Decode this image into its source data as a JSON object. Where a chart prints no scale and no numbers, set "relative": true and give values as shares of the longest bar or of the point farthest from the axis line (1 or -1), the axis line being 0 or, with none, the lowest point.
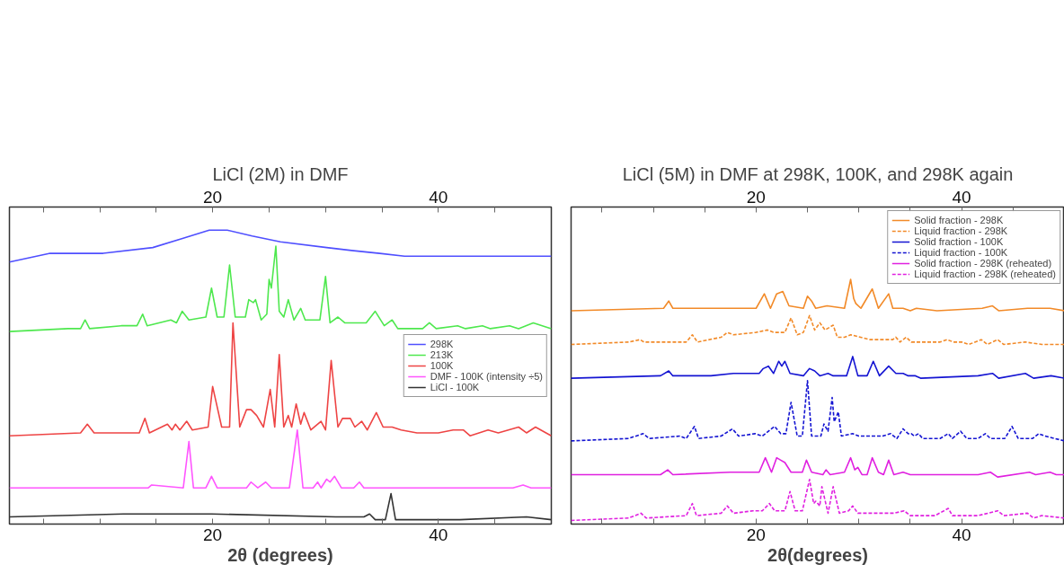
{
  "chart_data": [
    {
      "type": "line",
      "title": "LiCl (2M) in DMF",
      "xlabel": "2θ (degrees)",
      "relative": true,
      "legend": "right",
      "grid": false,
      "marker": "none",
      "xlim": [
        2,
        50
      ],
      "xticks": [
        {
          "value": 5,
          "label": null
        },
        {
          "value": 10,
          "label": null
        },
        {
          "value": 15,
          "label": null
        },
        20,
        {
          "value": 25,
          "label": null
        },
        {
          "value": 30,
          "label": null
        },
        {
          "value": 35,
          "label": null
        },
        40,
        {
          "value": 45,
          "label": null
        }
      ],
      "x2lim": [
        2,
        50
      ],
      "x2ticks": [
        {
          "value": 5,
          "label": null
        },
        {
          "value": 10,
          "label": null
        },
        {
          "value": 15,
          "label": null
        },
        20,
        {
          "value": 25,
          "label": null
        },
        {
          "value": 30,
          "label": null
        },
        {
          "value": 35,
          "label": null
        },
        40,
        {
          "value": 45,
          "label": null
        }
      ],
      "series": [
        {
          "name": "298K",
          "color": "#4f4fff",
          "line_style": "solid",
          "x": [
            2,
            5.6,
            10.3,
            14.7,
            17.2,
            19.7,
            21.3,
            23.5,
            26.0,
            30.1,
            32.3,
            34.8,
            37.0,
            41.7,
            50
          ],
          "values": [
            0.89,
            0.92,
            0.92,
            0.94,
            0.97,
            1.0,
            1.0,
            0.98,
            0.96,
            0.94,
            0.93,
            0.92,
            0.91,
            0.91,
            0.91
          ]
        },
        {
          "name": "213K",
          "color": "#4ee84e",
          "line_style": "solid",
          "x": [
            2,
            7.2,
            8.3,
            8.7,
            9.1,
            11.9,
            13.3,
            13.8,
            14.2,
            16.3,
            16.8,
            17.3,
            17.9,
            19.4,
            19.9,
            20.4,
            21.0,
            21.5,
            22.0,
            22.9,
            23.2,
            23.6,
            23.8,
            24.3,
            24.8,
            25.0,
            25.2,
            25.6,
            25.9,
            26.3,
            26.7,
            27.2,
            27.8,
            28.2,
            28.9,
            29.5,
            30.0,
            30.4,
            31.1,
            31.7,
            32.3,
            33.6,
            34.4,
            35.2,
            35.9,
            36.4,
            38.6,
            39.2,
            39.8,
            41.7,
            42.4,
            43.9,
            44.6,
            46.3,
            47.1,
            48.4,
            50
          ],
          "values": [
            0.65,
            0.66,
            0.66,
            0.69,
            0.66,
            0.67,
            0.67,
            0.71,
            0.67,
            0.69,
            0.68,
            0.72,
            0.69,
            0.7,
            0.8,
            0.7,
            0.7,
            0.88,
            0.7,
            0.7,
            0.76,
            0.75,
            0.76,
            0.69,
            0.71,
            0.83,
            0.8,
            0.945,
            0.72,
            0.7,
            0.76,
            0.69,
            0.73,
            0.69,
            0.69,
            0.69,
            0.84,
            0.68,
            0.7,
            0.68,
            0.68,
            0.68,
            0.72,
            0.67,
            0.69,
            0.66,
            0.66,
            0.68,
            0.66,
            0.67,
            0.66,
            0.67,
            0.66,
            0.67,
            0.66,
            0.68,
            0.66
          ]
        },
        {
          "name": "100K",
          "color": "#ee4444",
          "line_style": "solid",
          "x": [
            2,
            8.3,
            8.9,
            9.5,
            12.1,
            13.5,
            14.0,
            14.4,
            16.0,
            16.4,
            16.7,
            17.1,
            17.7,
            18.2,
            19.6,
            20.0,
            20.8,
            21.5,
            21.8,
            22.4,
            23.0,
            23.4,
            23.9,
            24.5,
            25.1,
            25.5,
            25.9,
            26.3,
            26.7,
            27.0,
            27.4,
            27.8,
            28.1,
            28.7,
            29.6,
            30.0,
            30.5,
            31.1,
            31.5,
            32.2,
            32.6,
            33.2,
            33.7,
            34.5,
            35.1,
            35.9,
            36.7,
            38.1,
            40.0,
            41.3,
            42.2,
            42.8,
            44.4,
            45.3,
            47.1,
            47.8,
            48.6,
            50
          ],
          "values": [
            0.29,
            0.3,
            0.33,
            0.3,
            0.3,
            0.3,
            0.35,
            0.3,
            0.33,
            0.31,
            0.33,
            0.31,
            0.34,
            0.31,
            0.32,
            0.46,
            0.32,
            0.32,
            0.68,
            0.32,
            0.38,
            0.38,
            0.36,
            0.32,
            0.45,
            0.32,
            0.57,
            0.32,
            0.36,
            0.32,
            0.4,
            0.33,
            0.37,
            0.31,
            0.34,
            0.31,
            0.55,
            0.32,
            0.35,
            0.35,
            0.32,
            0.34,
            0.31,
            0.37,
            0.32,
            0.32,
            0.31,
            0.3,
            0.3,
            0.31,
            0.31,
            0.29,
            0.31,
            0.3,
            0.32,
            0.3,
            0.32,
            0.29
          ]
        },
        {
          "name": "DMF - 100K (intensity ÷5)",
          "color": "#ff55ff",
          "line_style": "solid",
          "x": [
            2,
            14.3,
            14.6,
            17.4,
            17.9,
            18.3,
            19.4,
            19.9,
            20.4,
            23.0,
            23.4,
            24.0,
            24.7,
            25.2,
            26.8,
            27.5,
            28.0,
            28.9,
            29.3,
            29.6,
            30.1,
            30.4,
            30.8,
            31.4,
            32.5,
            33.0,
            33.4,
            34.5,
            40.0,
            42.8,
            46.6,
            47.5,
            48.2,
            50
          ],
          "values": [
            0.11,
            0.11,
            0.12,
            0.11,
            0.27,
            0.11,
            0.11,
            0.15,
            0.11,
            0.11,
            0.13,
            0.11,
            0.13,
            0.11,
            0.11,
            0.31,
            0.11,
            0.11,
            0.13,
            0.11,
            0.14,
            0.13,
            0.15,
            0.11,
            0.11,
            0.13,
            0.11,
            0.11,
            0.11,
            0.11,
            0.11,
            0.12,
            0.11,
            0.11
          ]
        },
        {
          "name": "LiCl - 100K",
          "color": "#333333",
          "line_style": "solid",
          "x": [
            2,
            12.1,
            19.9,
            30.9,
            33.4,
            33.9,
            34.4,
            35.3,
            35.8,
            36.2,
            41.9,
            47.8,
            50
          ],
          "values": [
            0.01,
            0.02,
            0.02,
            0.01,
            0.01,
            0.02,
            0.0,
            0.0,
            0.09,
            0.0,
            0.0,
            0.01,
            0.0
          ]
        }
      ]
    },
    {
      "type": "line",
      "title": "LiCl (5M) in DMF at 298K, 100K, and 298K again",
      "xlabel": "2θ(degrees)",
      "relative": true,
      "legend": "top right",
      "grid": false,
      "marker": "none",
      "xlim": [
        2,
        50
      ],
      "xticks": [
        {
          "value": 5,
          "label": null
        },
        {
          "value": 10,
          "label": null
        },
        {
          "value": 15,
          "label": null
        },
        20,
        {
          "value": 25,
          "label": null
        },
        {
          "value": 30,
          "label": null
        },
        {
          "value": 35,
          "label": null
        },
        40,
        {
          "value": 45,
          "label": null
        }
      ],
      "x2lim": [
        2,
        50
      ],
      "x2ticks": [
        {
          "value": 5,
          "label": null
        },
        {
          "value": 10,
          "label": null
        },
        {
          "value": 15,
          "label": null
        },
        20,
        {
          "value": 25,
          "label": null
        },
        {
          "value": 30,
          "label": null
        },
        {
          "value": 35,
          "label": null
        },
        40,
        {
          "value": 45,
          "label": null
        }
      ],
      "series": [
        {
          "name": "Solid fraction - 298K",
          "color": "#f28a28",
          "line_style": "solid",
          "x": [
            2,
            11.0,
            11.5,
            11.9,
            20.0,
            20.8,
            21.4,
            22.0,
            22.6,
            23.2,
            24.6,
            25.0,
            25.4,
            25.8,
            26.9,
            28.6,
            29.2,
            29.5,
            29.7,
            30.2,
            31.3,
            31.9,
            32.9,
            33.3,
            34.3,
            35.0,
            35.6,
            37.6,
            42.0,
            43.0,
            43.6,
            46.4,
            48.6,
            50
          ],
          "values": [
            0.87,
            0.88,
            0.91,
            0.88,
            0.88,
            0.94,
            0.88,
            0.94,
            0.95,
            0.89,
            0.88,
            0.93,
            0.91,
            0.88,
            0.89,
            0.88,
            1.0,
            0.92,
            0.9,
            0.88,
            0.96,
            0.88,
            0.94,
            0.88,
            0.88,
            0.87,
            0.88,
            0.87,
            0.88,
            0.89,
            0.87,
            0.88,
            0.88,
            0.87
          ]
        },
        {
          "name": "Liquid fraction - 298K",
          "color": "#f28a28",
          "line_style": "dashed",
          "x": [
            2,
            7.6,
            8.7,
            9.1,
            13.2,
            13.8,
            14.3,
            16.6,
            17.2,
            17.8,
            20.0,
            21.1,
            21.7,
            22.8,
            23.4,
            24.0,
            24.6,
            25.2,
            25.7,
            26.2,
            26.7,
            27.5,
            27.9,
            28.6,
            29.2,
            31.1,
            33.3,
            33.6,
            34.0,
            34.6,
            35.1,
            37.9,
            38.6,
            39.2,
            40.0,
            40.7,
            41.9,
            42.5,
            43.5,
            44.1,
            46.2,
            47.8,
            50
          ],
          "values": [
            0.73,
            0.74,
            0.75,
            0.74,
            0.74,
            0.77,
            0.74,
            0.76,
            0.78,
            0.77,
            0.78,
            0.79,
            0.78,
            0.78,
            0.84,
            0.77,
            0.78,
            0.85,
            0.79,
            0.82,
            0.79,
            0.81,
            0.76,
            0.76,
            0.77,
            0.75,
            0.75,
            0.76,
            0.74,
            0.76,
            0.74,
            0.74,
            0.75,
            0.74,
            0.74,
            0.73,
            0.75,
            0.73,
            0.75,
            0.73,
            0.74,
            0.73,
            0.73
          ]
        },
        {
          "name": "Solid fraction - 100K",
          "color": "#1414d2",
          "line_style": "solid",
          "x": [
            2,
            10.7,
            11.5,
            11.9,
            15.6,
            17.8,
            20.3,
            20.7,
            21.2,
            21.7,
            22.2,
            22.5,
            22.8,
            23.3,
            24.6,
            25.2,
            25.7,
            26.2,
            27.0,
            27.5,
            28.8,
            29.4,
            29.9,
            30.8,
            31.4,
            32.0,
            32.9,
            33.6,
            34.3,
            34.8,
            35.5,
            36.0,
            41.6,
            43.0,
            43.6,
            46.2,
            47.0,
            48.7,
            50
          ],
          "values": [
            0.59,
            0.6,
            0.62,
            0.6,
            0.6,
            0.61,
            0.61,
            0.63,
            0.64,
            0.61,
            0.66,
            0.64,
            0.66,
            0.61,
            0.6,
            0.63,
            0.62,
            0.6,
            0.61,
            0.6,
            0.6,
            0.68,
            0.6,
            0.6,
            0.66,
            0.6,
            0.64,
            0.61,
            0.61,
            0.6,
            0.6,
            0.59,
            0.6,
            0.61,
            0.59,
            0.61,
            0.59,
            0.6,
            0.59
          ]
        },
        {
          "name": "Liquid fraction - 100K",
          "color": "#1414d2",
          "line_style": "dashed",
          "x": [
            2,
            7.6,
            9.0,
            9.6,
            12.6,
            13.2,
            14.0,
            14.4,
            16.6,
            17.7,
            18.3,
            19.9,
            20.6,
            21.8,
            22.4,
            22.9,
            23.4,
            24.0,
            24.5,
            25.0,
            25.4,
            26.3,
            26.6,
            27.0,
            27.4,
            27.6,
            28.0,
            28.3,
            29.4,
            30.0,
            32.3,
            33.1,
            33.7,
            34.3,
            34.8,
            35.1,
            35.4,
            35.8,
            36.2,
            37.9,
            38.7,
            39.1,
            39.9,
            40.5,
            41.6,
            42.3,
            42.8,
            44.2,
            44.9,
            45.5,
            46.9,
            47.5,
            48.1,
            50
          ],
          "values": [
            0.33,
            0.34,
            0.36,
            0.34,
            0.35,
            0.34,
            0.39,
            0.34,
            0.35,
            0.38,
            0.35,
            0.36,
            0.35,
            0.39,
            0.36,
            0.36,
            0.49,
            0.35,
            0.35,
            0.58,
            0.35,
            0.35,
            0.4,
            0.37,
            0.51,
            0.41,
            0.45,
            0.35,
            0.36,
            0.35,
            0.35,
            0.36,
            0.34,
            0.38,
            0.36,
            0.36,
            0.35,
            0.36,
            0.34,
            0.34,
            0.36,
            0.34,
            0.37,
            0.34,
            0.34,
            0.36,
            0.34,
            0.34,
            0.39,
            0.34,
            0.34,
            0.36,
            0.35,
            0.33
          ]
        },
        {
          "name": "Solid fraction - 298K (reheated)",
          "color": "#e020e0",
          "line_style": "solid",
          "x": [
            2,
            10.7,
            11.4,
            11.9,
            17.5,
            20.3,
            20.9,
            21.5,
            22.0,
            22.4,
            22.8,
            23.4,
            24.5,
            24.9,
            25.4,
            26.5,
            26.8,
            27.2,
            28.6,
            29.2,
            29.6,
            29.9,
            30.3,
            30.8,
            31.3,
            31.9,
            32.4,
            32.9,
            33.4,
            34.3,
            35.0,
            35.6,
            36.0,
            41.6,
            42.8,
            43.5,
            46.6,
            47.2,
            48.6,
            49.2,
            50
          ],
          "values": [
            0.19,
            0.19,
            0.21,
            0.19,
            0.2,
            0.2,
            0.26,
            0.2,
            0.26,
            0.25,
            0.24,
            0.2,
            0.2,
            0.25,
            0.2,
            0.19,
            0.21,
            0.19,
            0.2,
            0.26,
            0.21,
            0.22,
            0.19,
            0.19,
            0.26,
            0.2,
            0.19,
            0.25,
            0.19,
            0.2,
            0.19,
            0.19,
            0.19,
            0.19,
            0.2,
            0.18,
            0.2,
            0.19,
            0.2,
            0.19,
            0.19
          ]
        },
        {
          "name": "Liquid fraction - 298K (reheated)",
          "color": "#e020e0",
          "line_style": "dashed",
          "x": [
            2,
            7.6,
            8.8,
            9.3,
            13.2,
            13.8,
            14.2,
            16.6,
            17.2,
            17.8,
            19.7,
            20.6,
            21.3,
            21.8,
            22.8,
            23.3,
            23.8,
            24.5,
            25.2,
            25.6,
            25.8,
            26.2,
            26.4,
            27.0,
            27.5,
            28.1,
            29.0,
            29.4,
            29.9,
            31.1,
            33.4,
            34.4,
            35.0,
            35.4,
            37.4,
            38.7,
            39.1,
            39.9,
            41.6,
            43.5,
            44.1,
            46.4,
            47.0,
            47.8,
            50
          ],
          "values": [
            0.0,
            0.01,
            0.03,
            0.01,
            0.02,
            0.07,
            0.02,
            0.03,
            0.06,
            0.03,
            0.04,
            0.04,
            0.07,
            0.04,
            0.04,
            0.12,
            0.04,
            0.04,
            0.17,
            0.07,
            0.08,
            0.06,
            0.14,
            0.03,
            0.14,
            0.03,
            0.04,
            0.06,
            0.03,
            0.03,
            0.03,
            0.04,
            0.02,
            0.02,
            0.02,
            0.05,
            0.02,
            0.02,
            0.02,
            0.04,
            0.02,
            0.03,
            0.01,
            0.02,
            0.01
          ]
        }
      ]
    }
  ]
}
